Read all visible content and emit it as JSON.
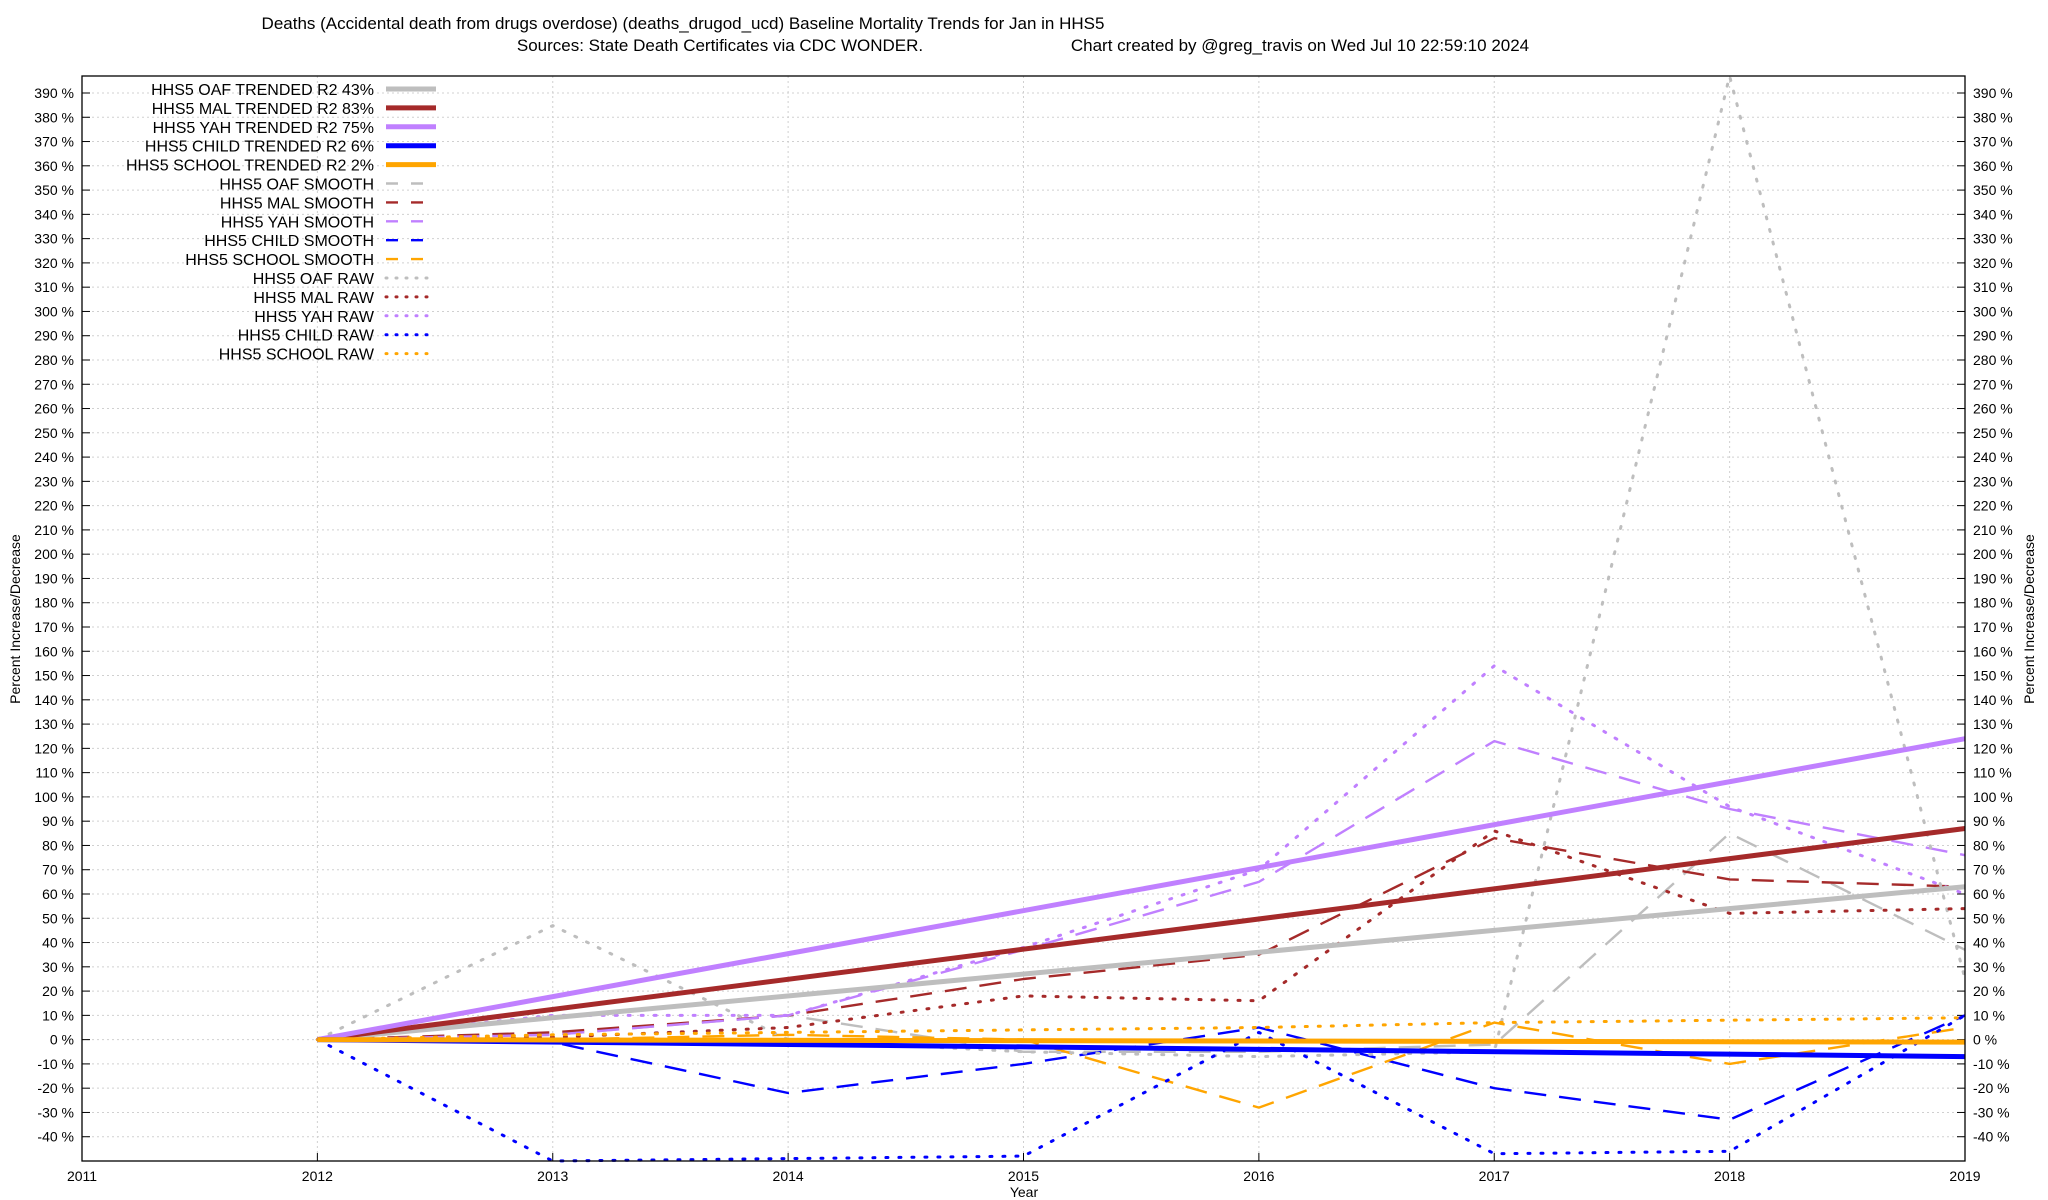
{
  "title_line1": "Deaths (Accidental death from drugs overdose) (deaths_drugod_ucd)  Baseline Mortality Trends for Jan in HHS5",
  "title_line2_left": "Sources: State Death Certificates via CDC WONDER.",
  "title_line2_right": "Chart created by @greg_travis on Wed Jul 10 22:59:10 2024",
  "chart_data": {
    "type": "line",
    "xlabel": "Year",
    "ylabel": "Percent Increase/Decrease",
    "xlim": [
      2011,
      2019
    ],
    "ylim": [
      -50,
      397
    ],
    "x_ticks": [
      "2011",
      "2012",
      "2013",
      "2014",
      "2015",
      "2016",
      "2017",
      "2018",
      "2019"
    ],
    "y_tick_labels": [
      "-40 %",
      "-30 %",
      "-20 %",
      "-10 %",
      "0 %",
      "10 %",
      "20 %",
      "30 %",
      "40 %",
      "50 %",
      "60 %",
      "70 %",
      "80 %",
      "90 %",
      "100 %",
      "110 %",
      "120 %",
      "130 %",
      "140 %",
      "150 %",
      "160 %",
      "170 %",
      "180 %",
      "190 %",
      "200 %",
      "210 %",
      "220 %",
      "230 %",
      "240 %",
      "250 %",
      "260 %",
      "270 %",
      "280 %",
      "290 %",
      "300 %",
      "310 %",
      "320 %",
      "330 %",
      "340 %",
      "350 %",
      "360 %",
      "370 %",
      "380 %",
      "390 %"
    ],
    "grid": true,
    "legend_position": "top-left",
    "series": [
      {
        "name": "HHS5 OAF TRENDED R2  43%",
        "style": "solid",
        "color": "#bebebe",
        "x": [
          2012,
          2019
        ],
        "y": [
          0,
          63
        ]
      },
      {
        "name": "HHS5 MAL TRENDED R2  83%",
        "style": "solid",
        "color": "#a52a2a",
        "x": [
          2012,
          2019
        ],
        "y": [
          0,
          87
        ]
      },
      {
        "name": "HHS5 YAH TRENDED R2  75%",
        "style": "solid",
        "color": "#c080ff",
        "x": [
          2012,
          2019
        ],
        "y": [
          0,
          124
        ]
      },
      {
        "name": "HHS5 CHILD TRENDED R2   6%",
        "style": "solid",
        "color": "#0000ff",
        "x": [
          2012,
          2019
        ],
        "y": [
          0,
          -7
        ]
      },
      {
        "name": "HHS5 SCHOOL TRENDED R2   2%",
        "style": "solid",
        "color": "#ffa500",
        "x": [
          2012,
          2019
        ],
        "y": [
          0,
          -1
        ]
      },
      {
        "name": "HHS5 OAF SMOOTH",
        "style": "dashed",
        "color": "#bebebe",
        "x": [
          2012,
          2013,
          2014,
          2015,
          2016,
          2017,
          2018,
          2019
        ],
        "y": [
          0,
          2,
          10,
          -5,
          -5,
          -2,
          85,
          37
        ]
      },
      {
        "name": "HHS5 MAL SMOOTH",
        "style": "dashed",
        "color": "#a52a2a",
        "x": [
          2012,
          2013,
          2014,
          2015,
          2016,
          2017,
          2018,
          2019
        ],
        "y": [
          0,
          3,
          10,
          25,
          35,
          83,
          66,
          63
        ]
      },
      {
        "name": "HHS5 YAH SMOOTH",
        "style": "dashed",
        "color": "#c080ff",
        "x": [
          2012,
          2013,
          2014,
          2015,
          2016,
          2017,
          2018,
          2019
        ],
        "y": [
          0,
          2,
          10,
          37,
          65,
          123,
          95,
          76
        ]
      },
      {
        "name": "HHS5 CHILD SMOOTH",
        "style": "dashed",
        "color": "#0000ff",
        "x": [
          2012,
          2013,
          2014,
          2015,
          2016,
          2017,
          2018,
          2019
        ],
        "y": [
          0,
          -1,
          -22,
          -10,
          5,
          -20,
          -33,
          10
        ]
      },
      {
        "name": "HHS5 SCHOOL SMOOTH",
        "style": "dashed",
        "color": "#ffa500",
        "x": [
          2012,
          2013,
          2014,
          2015,
          2016,
          2017,
          2018,
          2019
        ],
        "y": [
          0,
          0,
          2,
          0,
          -28,
          7,
          -10,
          5
        ]
      },
      {
        "name": "HHS5 OAF RAW",
        "style": "dotted",
        "color": "#bebebe",
        "x": [
          2012,
          2013,
          2014,
          2015,
          2016,
          2017,
          2018,
          2019
        ],
        "y": [
          0,
          47,
          0,
          -5,
          -7,
          -5,
          397,
          25
        ]
      },
      {
        "name": "HHS5 MAL RAW",
        "style": "dotted",
        "color": "#a52a2a",
        "x": [
          2012,
          2013,
          2014,
          2015,
          2016,
          2017,
          2018,
          2019
        ],
        "y": [
          0,
          1,
          5,
          18,
          16,
          86,
          52,
          54
        ]
      },
      {
        "name": "HHS5 YAH RAW",
        "style": "dotted",
        "color": "#c080ff",
        "x": [
          2012,
          2013,
          2014,
          2015,
          2016,
          2017,
          2018,
          2019
        ],
        "y": [
          0,
          10,
          10,
          38,
          70,
          154,
          96,
          60
        ]
      },
      {
        "name": "HHS5 CHILD RAW",
        "style": "dotted",
        "color": "#0000ff",
        "x": [
          2012,
          2013,
          2014,
          2015,
          2016,
          2017,
          2018,
          2019
        ],
        "y": [
          0,
          -50,
          -49,
          -48,
          3,
          -47,
          -46,
          10
        ]
      },
      {
        "name": "HHS5 SCHOOL RAW",
        "style": "dotted",
        "color": "#ffa500",
        "x": [
          2012,
          2013,
          2014,
          2015,
          2016,
          2017,
          2018,
          2019
        ],
        "y": [
          0,
          2,
          3,
          4,
          5,
          7,
          8,
          9
        ]
      }
    ]
  }
}
